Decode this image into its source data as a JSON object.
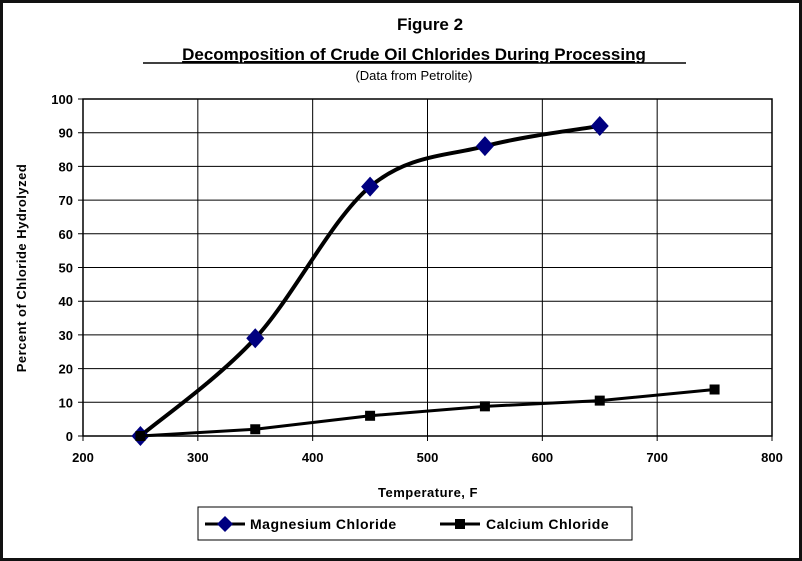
{
  "chart_data": {
    "type": "line",
    "title": "Figure 2",
    "subtitle": "Decomposition of Crude Oil Chlorides During Processing",
    "note": "(Data from Petrolite)",
    "xlabel": "Temperature, F",
    "ylabel": "Percent of Chloride Hydrolyzed",
    "xlim": [
      200,
      800
    ],
    "ylim": [
      0,
      100
    ],
    "xticks": [
      200,
      300,
      400,
      500,
      600,
      700,
      800
    ],
    "yticks": [
      0,
      10,
      20,
      30,
      40,
      50,
      60,
      70,
      80,
      90,
      100
    ],
    "grid": true,
    "legend_position": "bottom",
    "series": [
      {
        "name": "Magnesium Chloride",
        "color": "#000080",
        "line_color": "#000000",
        "marker": "diamond",
        "smooth": true,
        "x": [
          250,
          350,
          450,
          550,
          650
        ],
        "y": [
          0,
          29,
          74,
          86,
          92
        ]
      },
      {
        "name": "Calcium Chloride",
        "color": "#000000",
        "line_color": "#000000",
        "marker": "square",
        "smooth": false,
        "x": [
          250,
          350,
          450,
          550,
          650,
          750
        ],
        "y": [
          0,
          2,
          6,
          8.8,
          10.5,
          13.8
        ]
      }
    ]
  }
}
